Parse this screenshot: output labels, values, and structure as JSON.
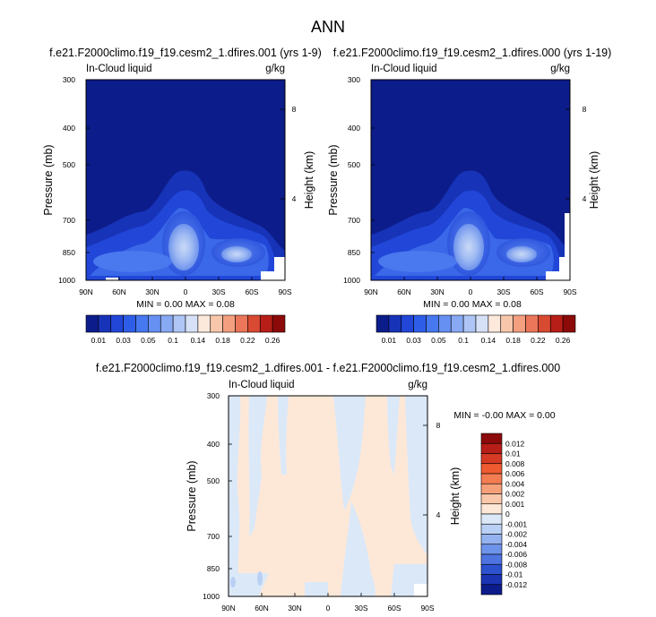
{
  "figure": {
    "title": "ANN"
  },
  "chart_data": [
    {
      "type": "heatmap",
      "title": "f.e21.F2000climo.f19_f19.cesm2_1.dfires.001 (yrs 1-9)",
      "left_label": "In-Cloud liquid",
      "right_label": "g/kg",
      "xlabel": "",
      "ylabel": "Pressure (mb)",
      "ylabel_right": "Height (km)",
      "x_ticks": [
        "90N",
        "60N",
        "30N",
        "0",
        "30S",
        "60S",
        "90S"
      ],
      "y_ticks": [
        "300",
        "400",
        "500",
        "700",
        "850",
        "1000"
      ],
      "y_ticks_right": [
        "8",
        "4"
      ],
      "y_scale": "log-pressure",
      "ylim": [
        1000,
        300
      ],
      "xlim": [
        90,
        -90
      ],
      "minmax_text": "MIN =  0.00   MAX =  0.08",
      "min": 0.0,
      "max": 0.08,
      "colorbar_levels": [
        0.01,
        0.02,
        0.03,
        0.04,
        0.05,
        0.06,
        0.1,
        0.12,
        0.14,
        0.16,
        0.18,
        0.2,
        0.22,
        0.24,
        0.26
      ],
      "colorbar_labels": [
        "0.01",
        "0.03",
        "0.05",
        "0.1",
        "0.14",
        "0.18",
        "0.22",
        "0.26"
      ]
    },
    {
      "type": "heatmap",
      "title": "f.e21.F2000climo.f19_f19.cesm2_1.dfires.000 (yrs 1-19)",
      "left_label": "In-Cloud liquid",
      "right_label": "g/kg",
      "xlabel": "",
      "ylabel": "Pressure (mb)",
      "ylabel_right": "Height (km)",
      "x_ticks": [
        "90N",
        "60N",
        "30N",
        "0",
        "30S",
        "60S",
        "90S"
      ],
      "y_ticks": [
        "300",
        "400",
        "500",
        "700",
        "850",
        "1000"
      ],
      "y_ticks_right": [
        "8",
        "4"
      ],
      "y_scale": "log-pressure",
      "ylim": [
        1000,
        300
      ],
      "xlim": [
        90,
        -90
      ],
      "minmax_text": "MIN =  0.00   MAX =  0.08",
      "min": 0.0,
      "max": 0.08,
      "colorbar_levels": [
        0.01,
        0.02,
        0.03,
        0.04,
        0.05,
        0.06,
        0.1,
        0.12,
        0.14,
        0.16,
        0.18,
        0.2,
        0.22,
        0.24,
        0.26
      ],
      "colorbar_labels": [
        "0.01",
        "0.03",
        "0.05",
        "0.1",
        "0.14",
        "0.18",
        "0.22",
        "0.26"
      ]
    },
    {
      "type": "heatmap",
      "title": "f.e21.F2000climo.f19_f19.cesm2_1.dfires.001 - f.e21.F2000climo.f19_f19.cesm2_1.dfires.000",
      "left_label": "In-Cloud liquid",
      "right_label": "g/kg",
      "xlabel": "",
      "ylabel": "Pressure (mb)",
      "ylabel_right": "Height (km)",
      "x_ticks": [
        "90N",
        "60N",
        "30N",
        "0",
        "30S",
        "60S",
        "90S"
      ],
      "y_ticks": [
        "300",
        "400",
        "500",
        "700",
        "850",
        "1000"
      ],
      "y_ticks_right": [
        "8",
        "4"
      ],
      "y_scale": "log-pressure",
      "ylim": [
        1000,
        300
      ],
      "xlim": [
        90,
        -90
      ],
      "minmax_text": "MIN = -0.00   MAX =  0.00",
      "min": -0.0,
      "max": 0.0,
      "colorbar_labels": [
        "0.012",
        "0.01",
        "0.008",
        "0.006",
        "0.004",
        "0.002",
        "0.001",
        "0",
        "-0.001",
        "-0.002",
        "-0.004",
        "-0.006",
        "-0.008",
        "-0.01",
        "-0.012"
      ]
    }
  ],
  "colors": {
    "seq_scale": [
      "#0c1c8a",
      "#1733b8",
      "#2146d8",
      "#2e5ee8",
      "#4678f0",
      "#6690f2",
      "#88a9f3",
      "#aec5f5",
      "#d6e1f7",
      "#fde8dc",
      "#f8c6ab",
      "#f39f80",
      "#eb765a",
      "#d94a32",
      "#b71e17",
      "#8c0a0a"
    ],
    "diff_scale": [
      "#8c0a0a",
      "#b71e17",
      "#d53a24",
      "#ef5a30",
      "#f47c52",
      "#f6a07a",
      "#f9c8aa",
      "#fde8d8",
      "#dbe8f8",
      "#b9d0f4",
      "#93b2ef",
      "#6e93ea",
      "#4d74e0",
      "#2d52cf",
      "#1a34b4",
      "#0c1c8a"
    ]
  }
}
